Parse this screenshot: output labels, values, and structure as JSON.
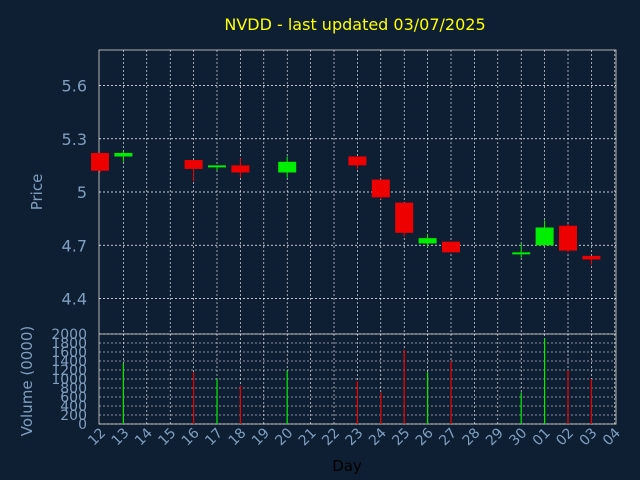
{
  "colors": {
    "background": "#0f1f33",
    "title": "#ffff00",
    "axis_text": "#7f9fc0",
    "up": "#00ee00",
    "down": "#ee0000",
    "frame": "#b0b0b0"
  },
  "chart_data": {
    "type": "candlestick",
    "title": "NVDD - last updated 03/07/2025",
    "xlabel": "Day",
    "price_ylabel": "Price",
    "volume_ylabel": "Volume (0000)",
    "price_ylim": [
      4.2,
      5.8
    ],
    "price_ticks": [
      "4.4",
      "4.7",
      "5",
      "5.3",
      "5.6"
    ],
    "volume_ylim": [
      0,
      2000
    ],
    "volume_ticks": [
      "0",
      "200",
      "400",
      "600",
      "800",
      "1000",
      "1200",
      "1400",
      "1600",
      "1800",
      "2000"
    ],
    "x_ticks": [
      "12",
      "13",
      "14",
      "15",
      "16",
      "17",
      "18",
      "19",
      "20",
      "21",
      "22",
      "23",
      "24",
      "25",
      "26",
      "27",
      "28",
      "29",
      "30",
      "01",
      "02",
      "03",
      "04"
    ],
    "grid": true,
    "candles": [
      {
        "day": "12",
        "open": 5.22,
        "high": 5.22,
        "low": 5.11,
        "close": 5.12,
        "volume": 0
      },
      {
        "day": "13",
        "open": 5.2,
        "high": 5.23,
        "low": 5.17,
        "close": 5.22,
        "volume": 1350
      },
      {
        "day": "16",
        "open": 5.18,
        "high": 5.18,
        "low": 5.06,
        "close": 5.13,
        "volume": 1150
      },
      {
        "day": "17",
        "open": 5.14,
        "high": 5.15,
        "low": 5.12,
        "close": 5.15,
        "volume": 1000
      },
      {
        "day": "18",
        "open": 5.15,
        "high": 5.19,
        "low": 5.08,
        "close": 5.11,
        "volume": 850
      },
      {
        "day": "20",
        "open": 5.11,
        "high": 5.2,
        "low": 5.08,
        "close": 5.17,
        "volume": 1180
      },
      {
        "day": "23",
        "open": 5.2,
        "high": 5.2,
        "low": 5.13,
        "close": 5.15,
        "volume": 950
      },
      {
        "day": "24",
        "open": 5.07,
        "high": 5.07,
        "low": 4.96,
        "close": 4.97,
        "volume": 700
      },
      {
        "day": "25",
        "open": 4.94,
        "high": 4.94,
        "low": 4.75,
        "close": 4.77,
        "volume": 1650
      },
      {
        "day": "26",
        "open": 4.71,
        "high": 4.76,
        "low": 4.69,
        "close": 4.74,
        "volume": 1150
      },
      {
        "day": "27",
        "open": 4.72,
        "high": 4.72,
        "low": 4.66,
        "close": 4.66,
        "volume": 1400
      },
      {
        "day": "30",
        "open": 4.65,
        "high": 4.71,
        "low": 4.63,
        "close": 4.66,
        "volume": 700
      },
      {
        "day": "01",
        "open": 4.7,
        "high": 4.84,
        "low": 4.7,
        "close": 4.8,
        "volume": 1900
      },
      {
        "day": "02",
        "open": 4.81,
        "high": 4.82,
        "low": 4.66,
        "close": 4.67,
        "volume": 1200
      },
      {
        "day": "03",
        "open": 4.64,
        "high": 4.64,
        "low": 4.59,
        "close": 4.62,
        "volume": 1000
      }
    ]
  }
}
